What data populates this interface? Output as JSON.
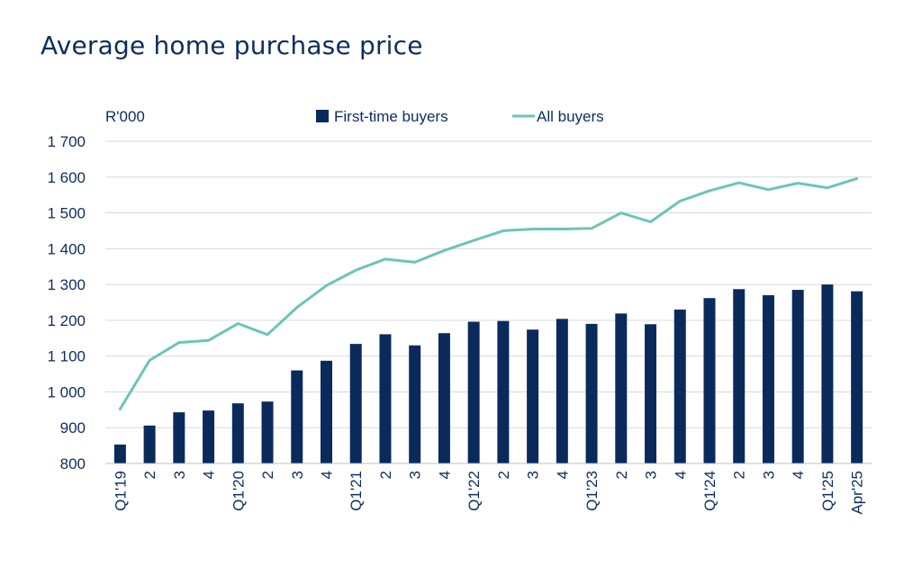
{
  "title": "Average home purchase price",
  "colors": {
    "bar": "#0b2a5c",
    "line": "#6cc5b7",
    "text": "#0d2d5e",
    "grid": "#d9d9d9"
  },
  "chart_data": {
    "type": "bar",
    "title": "Average home purchase price",
    "ylabel": "R'000",
    "xlabel": "",
    "ylim": [
      800,
      1700
    ],
    "yticks": [
      800,
      900,
      1000,
      1100,
      1200,
      1300,
      1400,
      1500,
      1600,
      1700
    ],
    "ytick_labels": [
      "800",
      "900",
      "1 000",
      "1 100",
      "1 200",
      "1 300",
      "1 400",
      "1 500",
      "1 600",
      "1 700"
    ],
    "categories": [
      "Q1'19",
      "2",
      "3",
      "4",
      "Q1'20",
      "2",
      "3",
      "4",
      "Q1'21",
      "2",
      "3",
      "4",
      "Q1'22",
      "2",
      "3",
      "4",
      "Q1'23",
      "2",
      "3",
      "4",
      "Q1'24",
      "2",
      "3",
      "4",
      "Q1'25",
      "Apr'25"
    ],
    "grid": true,
    "legend_position": "top",
    "series": [
      {
        "name": "First-time buyers",
        "kind": "bar",
        "values": [
          853,
          906,
          943,
          948,
          968,
          973,
          1060,
          1087,
          1134,
          1161,
          1130,
          1164,
          1196,
          1198,
          1174,
          1204,
          1190,
          1219,
          1189,
          1230,
          1262,
          1287,
          1270,
          1285,
          1300,
          1281
        ]
      },
      {
        "name": "All buyers",
        "kind": "line",
        "values": [
          952,
          1088,
          1138,
          1144,
          1191,
          1160,
          1236,
          1297,
          1340,
          1371,
          1362,
          1395,
          1423,
          1450,
          1455,
          1455,
          1457,
          1500,
          1475,
          1533,
          1562,
          1584,
          1565,
          1583,
          1570,
          1596
        ]
      }
    ]
  }
}
